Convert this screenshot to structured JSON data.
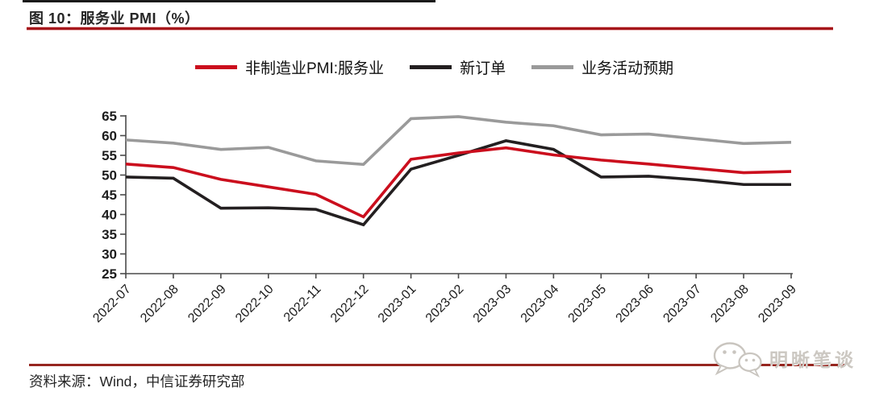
{
  "figure": {
    "title": "图 10：服务业 PMI（%）",
    "source": "资料来源：Wind，中信证券研究部",
    "watermark": "明晰笔谈"
  },
  "colors": {
    "series_red": "#cb0e1d",
    "series_black": "#231f20",
    "series_gray": "#9a9a9a",
    "title_rule_red": "#a5161b",
    "footer_rule_red": "#96261f",
    "axis": "#4a4a4a",
    "watermark_gray": "#ccc8c2"
  },
  "chart_data": {
    "type": "line",
    "title": "服务业 PMI（%）",
    "categories": [
      "2022-07",
      "2022-08",
      "2022-09",
      "2022-10",
      "2022-11",
      "2022-12",
      "2023-01",
      "2023-02",
      "2023-03",
      "2023-04",
      "2023-05",
      "2023-06",
      "2023-07",
      "2023-08",
      "2023-09"
    ],
    "series": [
      {
        "name": "非制造业PMI:服务业",
        "color": "#cb0e1d",
        "values": [
          52.8,
          51.9,
          48.9,
          47.0,
          45.1,
          39.4,
          54.0,
          55.6,
          56.9,
          55.1,
          53.8,
          52.8,
          51.7,
          50.6,
          50.9
        ]
      },
      {
        "name": "新订单",
        "color": "#231f20",
        "values": [
          49.5,
          49.2,
          41.6,
          41.7,
          41.3,
          37.4,
          51.5,
          55.0,
          58.7,
          56.5,
          49.5,
          49.7,
          48.8,
          47.6,
          47.6
        ]
      },
      {
        "name": "业务活动预期",
        "color": "#9a9a9a",
        "values": [
          58.9,
          58.1,
          56.5,
          57.0,
          53.6,
          52.7,
          64.3,
          64.8,
          63.4,
          62.5,
          60.2,
          60.4,
          59.2,
          58.0,
          58.3
        ]
      }
    ],
    "ylim": [
      25,
      65
    ],
    "yticks": [
      25,
      30,
      35,
      40,
      45,
      50,
      55,
      60,
      65
    ],
    "xlabel": "",
    "ylabel": "",
    "grid": false,
    "legend_position": "top"
  }
}
